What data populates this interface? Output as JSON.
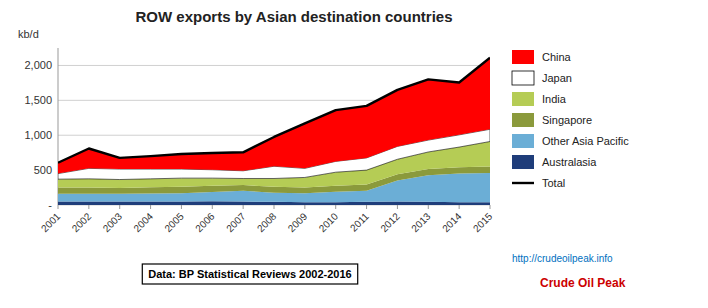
{
  "chart_data": {
    "type": "area",
    "stacked": true,
    "title": "ROW exports by Asian destination countries",
    "y_label": "kb/d",
    "x": [
      2001,
      2002,
      2003,
      2004,
      2005,
      2006,
      2007,
      2008,
      2009,
      2010,
      2011,
      2012,
      2013,
      2014,
      2015
    ],
    "xlim": [
      2001,
      2015
    ],
    "xticks": [
      2001,
      2002,
      2003,
      2004,
      2005,
      2006,
      2007,
      2008,
      2009,
      2010,
      2011,
      2012,
      2013,
      2014,
      2015
    ],
    "ylim": [
      0,
      2250
    ],
    "yticks": [
      {
        "value": 0,
        "label": "-"
      },
      500,
      {
        "value": 1000,
        "label": "1,000"
      },
      {
        "value": 1500,
        "label": "1,500"
      },
      {
        "value": 2000,
        "label": "2,000"
      }
    ],
    "grid": true,
    "legend": "right",
    "series": [
      {
        "name": "Australasia",
        "color": "#1f3d7a",
        "values": [
          50,
          50,
          50,
          50,
          50,
          55,
          50,
          45,
          40,
          40,
          45,
          50,
          45,
          40,
          40
        ]
      },
      {
        "name": "Other Asia Pacific",
        "color": "#6baed6",
        "values": [
          110,
          110,
          110,
          115,
          120,
          130,
          155,
          130,
          130,
          150,
          160,
          300,
          380,
          410,
          420
        ]
      },
      {
        "name": "Singapore",
        "color": "#8b9a3c",
        "values": [
          90,
          90,
          85,
          90,
          90,
          90,
          80,
          85,
          80,
          85,
          90,
          90,
          90,
          90,
          90
        ]
      },
      {
        "name": "India",
        "color": "#b5cc55",
        "values": [
          120,
          125,
          120,
          120,
          125,
          110,
          95,
          120,
          145,
          195,
          205,
          215,
          245,
          290,
          360
        ]
      },
      {
        "name": "Japan",
        "color": "#ffffff",
        "values": [
          80,
          150,
          150,
          140,
          130,
          120,
          110,
          175,
          130,
          155,
          175,
          185,
          170,
          175,
          175
        ]
      },
      {
        "name": "China",
        "color": "#ff0000",
        "values": [
          155,
          285,
          160,
          185,
          215,
          240,
          265,
          420,
          645,
          735,
          745,
          810,
          870,
          750,
          1025
        ]
      },
      {
        "name": "Total",
        "type": "line",
        "color": "#000000",
        "values": [
          605,
          810,
          675,
          700,
          730,
          745,
          755,
          975,
          1170,
          1360,
          1420,
          1650,
          1800,
          1755,
          2110
        ]
      }
    ],
    "annotations": [
      "Data: BP Statistical Reviews 2002-2016",
      "http://crudeoilpeak.info",
      "Crude Oil Peak"
    ]
  }
}
